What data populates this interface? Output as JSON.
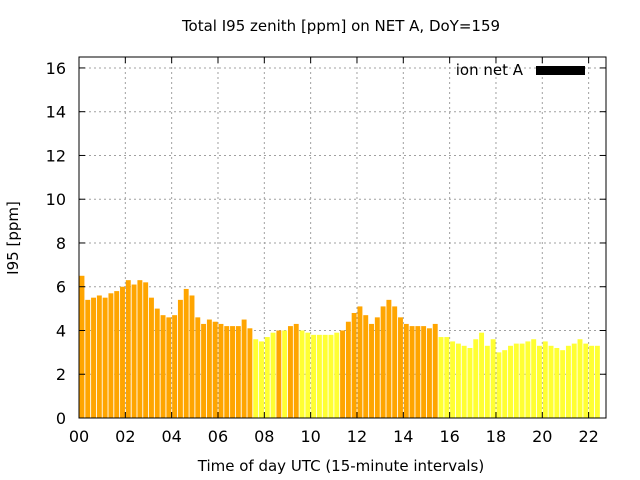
{
  "chart_data": {
    "type": "bar",
    "title": "Total I95 zenith [ppm] on NET A, DoY=159",
    "xlabel": "Time of day UTC (15-minute intervals)",
    "ylabel": "I95 [ppm]",
    "xlim": [
      0,
      22.75
    ],
    "ylim": [
      0,
      16.5
    ],
    "x_tick_values": [
      0,
      2,
      4,
      6,
      8,
      10,
      12,
      14,
      16,
      18,
      20,
      22
    ],
    "x_tick_labels": [
      "00",
      "02",
      "04",
      "06",
      "08",
      "10",
      "12",
      "14",
      "16",
      "18",
      "20",
      "22"
    ],
    "y_tick_values": [
      0,
      2,
      4,
      6,
      8,
      10,
      12,
      14,
      16
    ],
    "y_tick_labels": [
      "0",
      "2",
      "4",
      "6",
      "8",
      "10",
      "12",
      "14",
      "16"
    ],
    "grid": true,
    "legend": {
      "label": "ion net A",
      "color": "#000000",
      "position": "top-right"
    },
    "bar_interval_hours": 0.25,
    "colors": {
      "orange": "#FFA500",
      "yellow": "#FFFF33"
    },
    "series": [
      {
        "values": [
          6.5,
          5.4,
          5.5,
          5.6,
          5.5,
          5.7,
          5.8,
          6.0,
          6.3,
          6.1,
          6.3,
          6.2,
          5.5,
          5.0,
          4.7,
          4.6,
          4.7,
          5.4,
          5.9,
          5.6,
          4.6,
          4.3,
          4.5,
          4.4,
          4.3,
          4.2,
          4.2,
          4.2,
          4.5,
          4.1,
          3.6,
          3.5,
          3.7,
          3.9,
          4.0,
          4.0,
          4.2,
          4.3,
          4.0,
          3.9,
          3.8,
          3.8,
          3.8,
          3.8,
          3.9,
          4.0,
          4.4,
          4.8,
          5.1,
          4.7,
          4.3,
          4.6,
          5.1,
          5.4,
          5.1,
          4.6,
          4.3,
          4.2,
          4.2,
          4.2,
          4.1,
          4.3,
          3.7,
          3.7,
          3.5,
          3.4,
          3.3,
          3.2,
          3.6,
          3.9,
          3.3,
          3.6,
          3.0,
          3.1,
          3.3,
          3.4,
          3.4,
          3.5,
          3.6,
          3.3,
          3.5,
          3.3,
          3.2,
          3.1,
          3.3,
          3.4,
          3.6,
          3.4,
          3.3,
          3.3
        ],
        "colors": [
          "#FFA500",
          "#FFA500",
          "#FFA500",
          "#FFA500",
          "#FFA500",
          "#FFA500",
          "#FFA500",
          "#FFA500",
          "#FFA500",
          "#FFA500",
          "#FFA500",
          "#FFA500",
          "#FFA500",
          "#FFA500",
          "#FFA500",
          "#FFA500",
          "#FFA500",
          "#FFA500",
          "#FFA500",
          "#FFA500",
          "#FFA500",
          "#FFA500",
          "#FFA500",
          "#FFA500",
          "#FFA500",
          "#FFA500",
          "#FFA500",
          "#FFA500",
          "#FFA500",
          "#FFA500",
          "#FFFF33",
          "#FFFF33",
          "#FFFF33",
          "#FFFF33",
          "#FFA500",
          "#FFFF33",
          "#FFA500",
          "#FFA500",
          "#FFFF33",
          "#FFFF33",
          "#FFFF33",
          "#FFFF33",
          "#FFFF33",
          "#FFFF33",
          "#FFFF33",
          "#FFA500",
          "#FFA500",
          "#FFA500",
          "#FFA500",
          "#FFA500",
          "#FFA500",
          "#FFA500",
          "#FFA500",
          "#FFA500",
          "#FFA500",
          "#FFA500",
          "#FFA500",
          "#FFA500",
          "#FFA500",
          "#FFA500",
          "#FFA500",
          "#FFA500",
          "#FFFF33",
          "#FFFF33",
          "#FFFF33",
          "#FFFF33",
          "#FFFF33",
          "#FFFF33",
          "#FFFF33",
          "#FFFF33",
          "#FFFF33",
          "#FFFF33",
          "#FFFF33",
          "#FFFF33",
          "#FFFF33",
          "#FFFF33",
          "#FFFF33",
          "#FFFF33",
          "#FFFF33",
          "#FFFF33",
          "#FFFF33",
          "#FFFF33",
          "#FFFF33",
          "#FFFF33",
          "#FFFF33",
          "#FFFF33",
          "#FFFF33",
          "#FFFF33",
          "#FFFF33",
          "#FFFF33"
        ]
      }
    ]
  }
}
